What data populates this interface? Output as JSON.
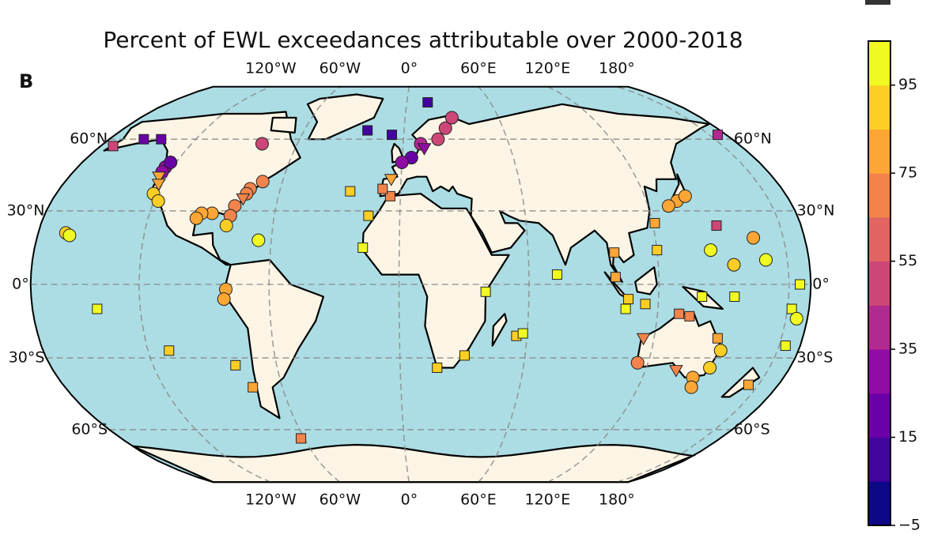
{
  "chart_data": {
    "type": "map",
    "title": "Percent of EWL exceedances attributable over 2000-2018",
    "panel_label": "B",
    "xticks": [
      {
        "value": -120,
        "label": "120°W"
      },
      {
        "value": -60,
        "label": "60°W"
      },
      {
        "value": 0,
        "label": "0°"
      },
      {
        "value": 60,
        "label": "60°E"
      },
      {
        "value": 120,
        "label": "120°E"
      },
      {
        "value": 180,
        "label": "180°"
      }
    ],
    "yticks": [
      {
        "value": -60,
        "label": "60°S"
      },
      {
        "value": -30,
        "label": "30°S"
      },
      {
        "value": 0,
        "label": "0°"
      },
      {
        "value": 30,
        "label": "30°N"
      },
      {
        "value": 60,
        "label": "60°N"
      }
    ],
    "grid": true,
    "land_color": "#fcf5e5",
    "ocean_color": "#acdde4",
    "clim": [
      -5,
      105
    ],
    "cticks": [
      {
        "value": -5,
        "label": "−5"
      },
      15,
      35,
      55,
      75,
      95
    ],
    "colormap": [
      "#0d0887",
      "#41049d",
      "#6a00a8",
      "#8f0da4",
      "#b12a90",
      "#cc4778",
      "#e16462",
      "#f2844b",
      "#fca636",
      "#fcce25",
      "#f0f921"
    ],
    "series": [
      {
        "marker": "square",
        "x": [
          -163,
          -150,
          -140,
          -80,
          -75,
          -25,
          -15,
          -17,
          -22,
          -7,
          15,
          -62,
          18,
          31,
          40,
          55,
          58,
          105,
          121,
          120,
          100,
          100,
          106,
          114,
          175,
          155,
          140,
          73,
          -5,
          -9,
          130,
          135,
          150,
          -175,
          150,
          -175,
          -178,
          -177,
          -140,
          -110
        ],
        "y": [
          57,
          60,
          60,
          -33,
          -42,
          38,
          28,
          15,
          64,
          62,
          78,
          -64,
          -34,
          -29,
          -3,
          -21,
          -20,
          -10,
          25,
          14,
          3,
          13,
          -6,
          -8,
          -41,
          -5,
          -5,
          4,
          36,
          39,
          -12,
          -13,
          -22,
          62,
          24,
          0,
          -10,
          -25,
          -10,
          -27
        ],
        "values": [
          50,
          20,
          15,
          90,
          75,
          90,
          90,
          95,
          10,
          10,
          5,
          70,
          90,
          90,
          95,
          90,
          95,
          95,
          80,
          85,
          75,
          80,
          85,
          85,
          80,
          95,
          95,
          95,
          70,
          70,
          70,
          70,
          75,
          40,
          50,
          95,
          95,
          95,
          95,
          90
        ]
      },
      {
        "marker": "circle",
        "x": [
          -124,
          -124,
          -123,
          -122,
          -118,
          -80,
          -70,
          -75,
          -76,
          -80,
          -81,
          -90,
          -95,
          -97,
          -82,
          -157,
          -155,
          -66,
          -80,
          -81,
          5,
          10,
          20,
          25,
          30,
          0,
          135,
          140,
          130,
          145,
          155,
          170,
          166,
          -175,
          153,
          151,
          145,
          147,
          115
        ],
        "y": [
          48,
          46,
          50,
          37,
          34,
          58,
          42,
          39,
          37,
          32,
          28,
          29,
          29,
          27,
          24,
          21,
          20,
          18,
          -2,
          -6,
          52,
          58,
          60,
          65,
          70,
          50,
          34,
          36,
          32,
          14,
          8,
          10,
          19,
          -14,
          -27,
          -34,
          -38,
          -42,
          -32
        ],
        "values": [
          30,
          25,
          20,
          85,
          90,
          50,
          70,
          70,
          70,
          70,
          70,
          75,
          75,
          75,
          90,
          90,
          95,
          95,
          80,
          80,
          20,
          40,
          45,
          45,
          50,
          25,
          80,
          80,
          80,
          95,
          90,
          95,
          75,
          95,
          90,
          85,
          80,
          80,
          70
        ]
      },
      {
        "marker": "triangle",
        "x": [
          -124,
          -122,
          -77,
          -5,
          115,
          135,
          12
        ],
        "y": [
          44,
          41,
          35,
          43,
          -22,
          -35,
          56
        ],
        "values": [
          80,
          75,
          70,
          80,
          70,
          70,
          25
        ]
      }
    ]
  }
}
